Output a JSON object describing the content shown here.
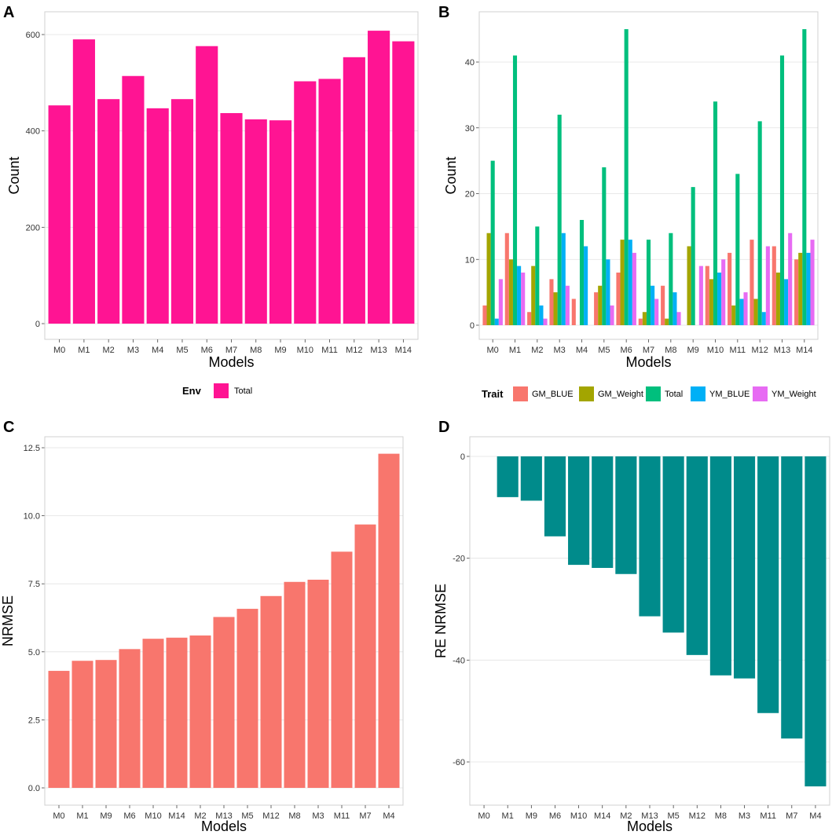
{
  "chart_data": [
    {
      "panel": "A",
      "type": "bar",
      "xlabel": "Models",
      "ylabel": "Count",
      "ylim": [
        0,
        620
      ],
      "yticks": [
        0,
        200,
        400,
        600
      ],
      "categories": [
        "M0",
        "M1",
        "M2",
        "M3",
        "M4",
        "M5",
        "M6",
        "M7",
        "M8",
        "M9",
        "M10",
        "M11",
        "M12",
        "M13",
        "M14"
      ],
      "series": [
        {
          "name": "Total",
          "color": "#FF1493",
          "values": [
            453,
            590,
            466,
            514,
            447,
            466,
            576,
            437,
            424,
            422,
            503,
            508,
            553,
            608,
            586
          ]
        }
      ],
      "legend": {
        "title": "Env",
        "position": "bottom",
        "entries": [
          "Total"
        ]
      }
    },
    {
      "panel": "B",
      "type": "bar",
      "grouped": true,
      "xlabel": "Models",
      "ylabel": "Count",
      "ylim": [
        0,
        46
      ],
      "yticks": [
        0,
        10,
        20,
        30,
        40
      ],
      "categories": [
        "M0",
        "M1",
        "M2",
        "M3",
        "M4",
        "M5",
        "M6",
        "M7",
        "M8",
        "M9",
        "M10",
        "M11",
        "M12",
        "M13",
        "M14"
      ],
      "series": [
        {
          "name": "GM_BLUE",
          "color": "#F8766D",
          "values": [
            3,
            14,
            2,
            7,
            4,
            5,
            8,
            1,
            6,
            0,
            9,
            11,
            13,
            12,
            10
          ]
        },
        {
          "name": "GM_Weight",
          "color": "#A3A500",
          "values": [
            14,
            10,
            9,
            5,
            0,
            6,
            13,
            2,
            1,
            12,
            7,
            3,
            4,
            8,
            11
          ]
        },
        {
          "name": "Total",
          "color": "#00BF7D",
          "values": [
            25,
            41,
            15,
            32,
            16,
            24,
            45,
            13,
            14,
            21,
            34,
            23,
            31,
            41,
            45
          ]
        },
        {
          "name": "YM_BLUE",
          "color": "#00B0F6",
          "values": [
            1,
            9,
            3,
            14,
            12,
            10,
            13,
            6,
            5,
            0,
            8,
            4,
            2,
            7,
            11
          ]
        },
        {
          "name": "YM_Weight",
          "color": "#E76BF3",
          "values": [
            7,
            8,
            1,
            6,
            0,
            3,
            11,
            4,
            2,
            9,
            10,
            5,
            12,
            14,
            13
          ]
        }
      ],
      "legend": {
        "title": "Trait",
        "position": "bottom",
        "entries": [
          "GM_BLUE",
          "GM_Weight",
          "Total",
          "YM_BLUE",
          "YM_Weight"
        ]
      }
    },
    {
      "panel": "C",
      "type": "bar",
      "xlabel": "Models",
      "ylabel": "NRMSE",
      "ylim": [
        0,
        12.5
      ],
      "yticks": [
        "0.0",
        "2.5",
        "5.0",
        "7.5",
        "10.0",
        "12.5"
      ],
      "categories": [
        "M0",
        "M1",
        "M9",
        "M6",
        "M10",
        "M14",
        "M2",
        "M13",
        "M5",
        "M12",
        "M8",
        "M3",
        "M11",
        "M7",
        "M4"
      ],
      "series": [
        {
          "name": "NRMSE",
          "color": "#F8766D",
          "values": [
            4.3,
            4.67,
            4.7,
            5.1,
            5.48,
            5.52,
            5.6,
            6.28,
            6.58,
            7.05,
            7.57,
            7.65,
            8.68,
            9.68,
            12.28
          ]
        }
      ]
    },
    {
      "panel": "D",
      "type": "bar",
      "xlabel": "Models",
      "ylabel": "RE NRMSE",
      "ylim": [
        -66,
        0
      ],
      "yticks": [
        0,
        -20,
        -40,
        -60
      ],
      "categories": [
        "M0",
        "M1",
        "M9",
        "M6",
        "M10",
        "M14",
        "M2",
        "M13",
        "M5",
        "M12",
        "M8",
        "M3",
        "M11",
        "M7",
        "M4"
      ],
      "series": [
        {
          "name": "RE NRMSE",
          "color": "#008B8B",
          "values": [
            0,
            -8.0,
            -8.7,
            -15.7,
            -21.3,
            -21.9,
            -23.1,
            -31.4,
            -34.6,
            -39.0,
            -43.0,
            -43.6,
            -50.4,
            -55.4,
            -64.8
          ]
        }
      ]
    }
  ],
  "panel_labels": [
    "A",
    "B",
    "C",
    "D"
  ]
}
